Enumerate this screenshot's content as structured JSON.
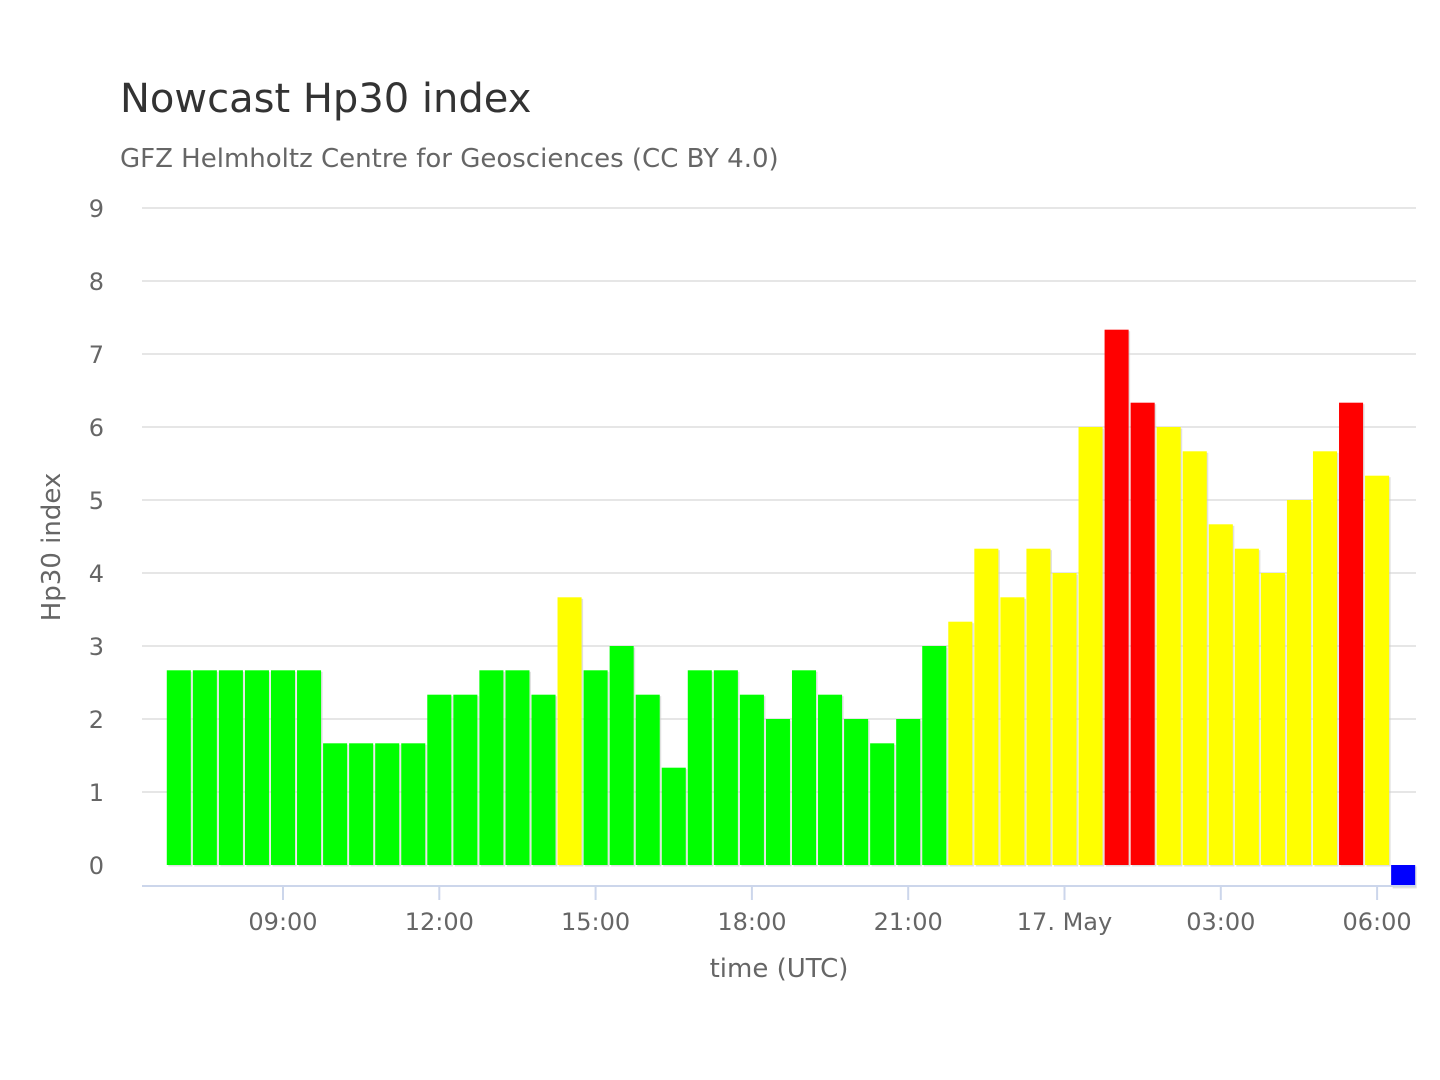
{
  "chart_data": {
    "type": "bar",
    "title": "Nowcast Hp30 index",
    "subtitle": "GFZ Helmholtz Centre for Geosciences (CC BY 4.0)",
    "xlabel": "time (UTC)",
    "ylabel": "Hp30 index",
    "ylim": [
      0,
      9
    ],
    "yticks": [
      0,
      1,
      2,
      3,
      4,
      5,
      6,
      7,
      8,
      9
    ],
    "interval_minutes": 30,
    "first_bar_start": "2025-05-16 06:45 UTC",
    "xticks": [
      {
        "time": "2025-05-16 09:00",
        "label": "09:00"
      },
      {
        "time": "2025-05-16 12:00",
        "label": "12:00"
      },
      {
        "time": "2025-05-16 15:00",
        "label": "15:00"
      },
      {
        "time": "2025-05-16 18:00",
        "label": "18:00"
      },
      {
        "time": "2025-05-16 21:00",
        "label": "21:00"
      },
      {
        "time": "2025-05-17 00:00",
        "label": "17. May"
      },
      {
        "time": "2025-05-17 03:00",
        "label": "03:00"
      },
      {
        "time": "2025-05-17 06:00",
        "label": "06:00"
      }
    ],
    "values": [
      2.667,
      2.667,
      2.667,
      2.667,
      2.667,
      2.667,
      1.667,
      1.667,
      1.667,
      1.667,
      2.333,
      2.333,
      2.667,
      2.667,
      2.333,
      3.667,
      2.667,
      3.0,
      2.333,
      1.333,
      2.667,
      2.667,
      2.333,
      2.0,
      2.667,
      2.333,
      2.0,
      1.667,
      2.0,
      3.0,
      3.333,
      4.333,
      3.667,
      4.333,
      4.0,
      6.0,
      7.333,
      6.333,
      6.0,
      5.667,
      4.667,
      4.333,
      4.0,
      5.0,
      5.667,
      6.333,
      5.333,
      -0.3
    ],
    "colors": [
      "#00ff00",
      "#00ff00",
      "#00ff00",
      "#00ff00",
      "#00ff00",
      "#00ff00",
      "#00ff00",
      "#00ff00",
      "#00ff00",
      "#00ff00",
      "#00ff00",
      "#00ff00",
      "#00ff00",
      "#00ff00",
      "#00ff00",
      "#ffff00",
      "#00ff00",
      "#00ff00",
      "#00ff00",
      "#00ff00",
      "#00ff00",
      "#00ff00",
      "#00ff00",
      "#00ff00",
      "#00ff00",
      "#00ff00",
      "#00ff00",
      "#00ff00",
      "#00ff00",
      "#00ff00",
      "#ffff00",
      "#ffff00",
      "#ffff00",
      "#ffff00",
      "#ffff00",
      "#ffff00",
      "#ff0000",
      "#ff0000",
      "#ffff00",
      "#ffff00",
      "#ffff00",
      "#ffff00",
      "#ffff00",
      "#ffff00",
      "#ffff00",
      "#ff0000",
      "#ffff00",
      "#0000ff"
    ],
    "grid": true,
    "legend": "none"
  }
}
